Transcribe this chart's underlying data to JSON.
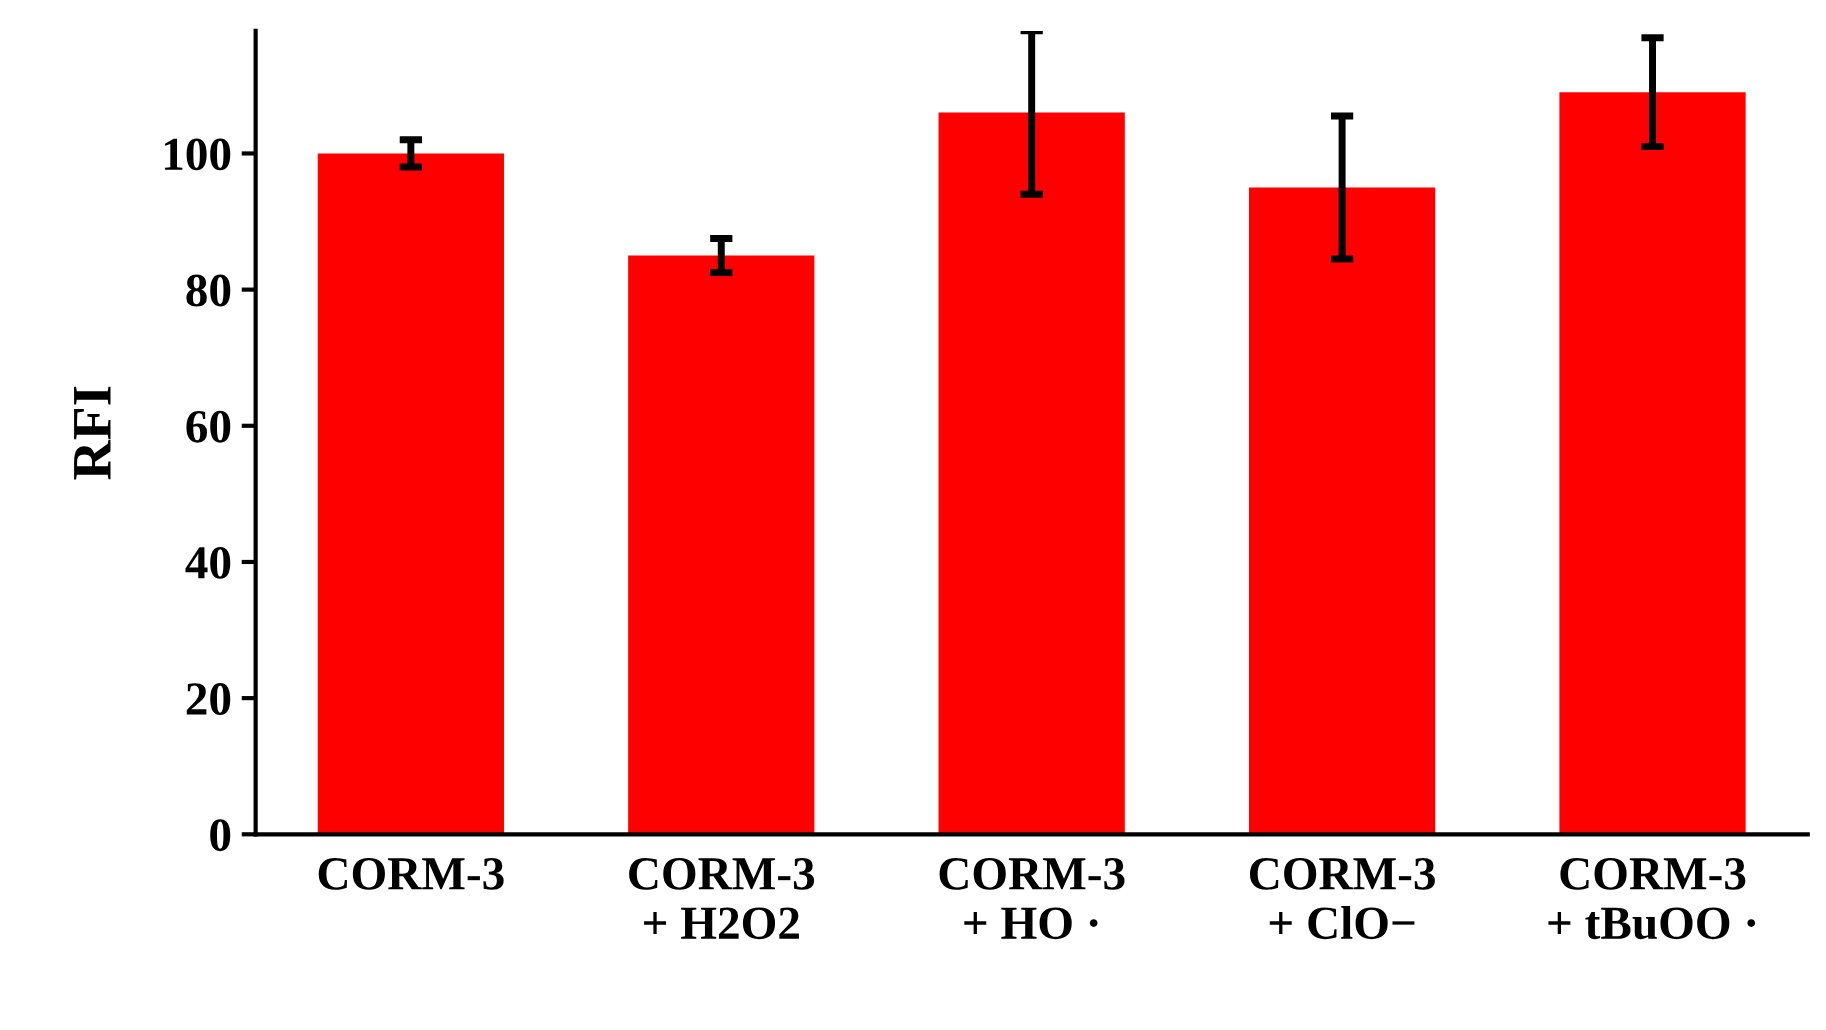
{
  "chart_data": {
    "type": "bar",
    "ylabel": "RFI",
    "categories": [
      "CORM-3",
      "CORM-3\n+ H2O2",
      "CORM-3\n+ HO ·",
      "CORM-3\n+ ClO−",
      "CORM-3\n+ tBuOO ·"
    ],
    "values": [
      100,
      85,
      106,
      95,
      109
    ],
    "errors": [
      2,
      2.5,
      12,
      10.5,
      8
    ],
    "color": "#ff0000",
    "ylim": [
      0,
      118
    ],
    "yticks": [
      0,
      20,
      40,
      60,
      80,
      100
    ],
    "grid": false
  }
}
